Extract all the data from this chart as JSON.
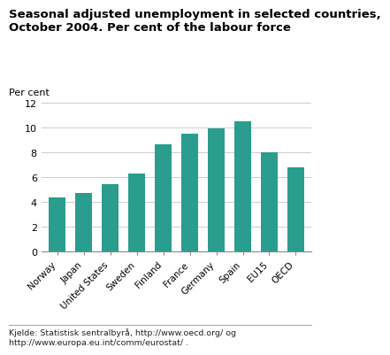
{
  "title": "Seasonal adjusted unemployment in selected countries,\nOctober 2004. Per cent of the labour force",
  "ylabel": "Per cent",
  "categories": [
    "Norway",
    "Japan",
    "United States",
    "Sweden",
    "Finland",
    "France",
    "Germany",
    "Spain",
    "EU15",
    "OECD"
  ],
  "values": [
    4.4,
    4.7,
    5.45,
    6.3,
    8.65,
    9.5,
    9.9,
    10.5,
    8.0,
    6.75
  ],
  "bar_color": "#2a9d8f",
  "ylim": [
    0,
    12
  ],
  "yticks": [
    0,
    2,
    4,
    6,
    8,
    10,
    12
  ],
  "background_color": "#ffffff",
  "grid_color": "#cccccc",
  "footnote": "Kjelde: Statistisk sentralbyrå, http://www.oecd.org/ og\nhttp://www.europa.eu.int/comm/eurostat/ ."
}
